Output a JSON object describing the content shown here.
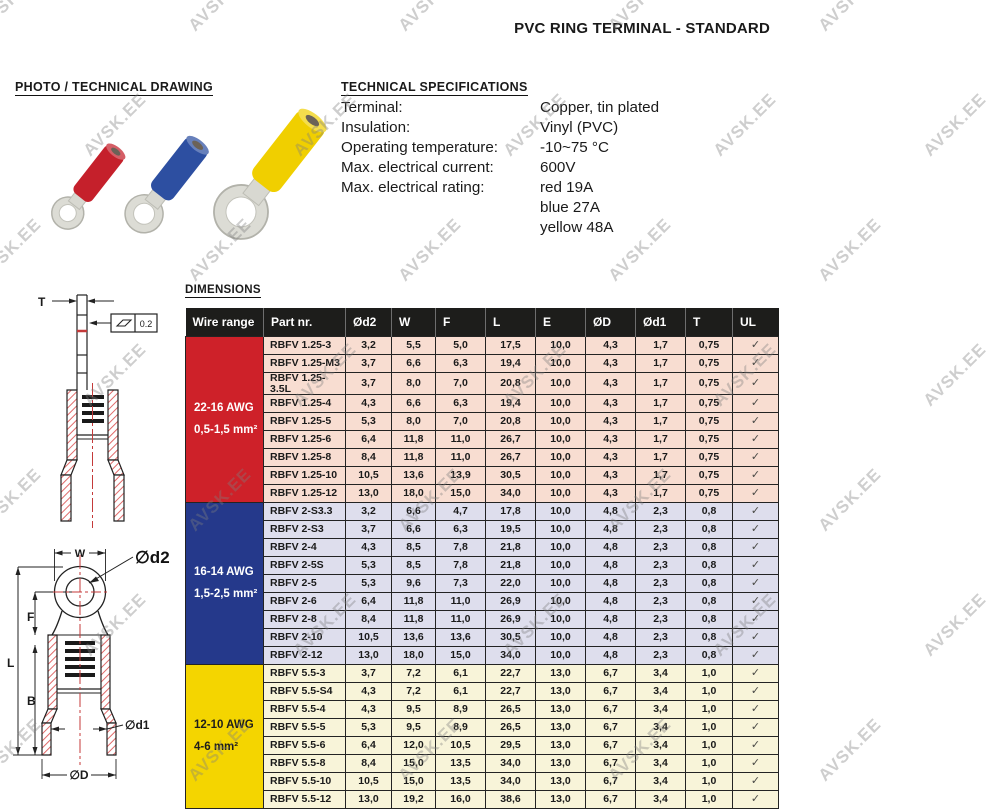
{
  "watermark": {
    "text": "AVSK.EE"
  },
  "title": "PVC RING TERMINAL - STANDARD",
  "sections": {
    "photo_heading": "PHOTO / TECHNICAL DRAWING",
    "specs_heading": "TECHNICAL SPECIFICATIONS",
    "dimensions_heading": "DIMENSIONS"
  },
  "specs": {
    "rows": [
      {
        "label": "Terminal:",
        "value": "Copper, tin plated"
      },
      {
        "label": "Insulation:",
        "value": "Vinyl (PVC)"
      },
      {
        "label": "Operating temperature:",
        "value": "-10~75 °C"
      },
      {
        "label": "Max. electrical current:",
        "value": "600V"
      },
      {
        "label": "Max. electrical rating:",
        "value": "red 19A"
      },
      {
        "label": "",
        "value": "blue 27A"
      },
      {
        "label": "",
        "value": "yellow 48A"
      }
    ]
  },
  "photo": {
    "terminals": [
      {
        "name": "red-terminal",
        "color": "#c5202b"
      },
      {
        "name": "blue-terminal",
        "color": "#2d4fa1"
      },
      {
        "name": "yellow-terminal",
        "color": "#f0cf00"
      }
    ]
  },
  "drawing_side": {
    "labels": {
      "t": "T",
      "tolerance": "0.2"
    }
  },
  "drawing_front": {
    "labels": {
      "w": "W",
      "d2": "∅d2",
      "f": "F",
      "l": "L",
      "b": "B",
      "d1": "∅d1",
      "d_outer": "∅D"
    }
  },
  "table": {
    "header_bg": "#1d1d1b",
    "check_symbol": "✓",
    "columns": [
      "Wire range",
      "Part nr.",
      "Ød2",
      "W",
      "F",
      "L",
      "E",
      "ØD",
      "Ød1",
      "T",
      "UL"
    ],
    "groups": [
      {
        "wire_range": "22-16 AWG",
        "wire_mm": "0,5-1,5 mm²",
        "label_bg": "#ce2129",
        "label_color": "#ffffff",
        "row_bg": "#f8ddd1",
        "rows": [
          {
            "part": "RBFV 1.25-3",
            "values": [
              "3,2",
              "5,5",
              "5,0",
              "17,5",
              "10,0",
              "4,3",
              "1,7",
              "0,75"
            ],
            "ul": true
          },
          {
            "part": "RBFV 1.25-M3",
            "values": [
              "3,7",
              "6,6",
              "6,3",
              "19,4",
              "10,0",
              "4,3",
              "1,7",
              "0,75"
            ],
            "ul": true
          },
          {
            "part": "RBFV 1.25-3.5L",
            "values": [
              "3,7",
              "8,0",
              "7,0",
              "20,8",
              "10,0",
              "4,3",
              "1,7",
              "0,75"
            ],
            "ul": true
          },
          {
            "part": "RBFV 1.25-4",
            "values": [
              "4,3",
              "6,6",
              "6,3",
              "19,4",
              "10,0",
              "4,3",
              "1,7",
              "0,75"
            ],
            "ul": true
          },
          {
            "part": "RBFV 1.25-5",
            "values": [
              "5,3",
              "8,0",
              "7,0",
              "20,8",
              "10,0",
              "4,3",
              "1,7",
              "0,75"
            ],
            "ul": true
          },
          {
            "part": "RBFV 1.25-6",
            "values": [
              "6,4",
              "11,8",
              "11,0",
              "26,7",
              "10,0",
              "4,3",
              "1,7",
              "0,75"
            ],
            "ul": true
          },
          {
            "part": "RBFV 1.25-8",
            "values": [
              "8,4",
              "11,8",
              "11,0",
              "26,7",
              "10,0",
              "4,3",
              "1,7",
              "0,75"
            ],
            "ul": true
          },
          {
            "part": "RBFV 1.25-10",
            "values": [
              "10,5",
              "13,6",
              "13,9",
              "30,5",
              "10,0",
              "4,3",
              "1,7",
              "0,75"
            ],
            "ul": true
          },
          {
            "part": "RBFV 1.25-12",
            "values": [
              "13,0",
              "18,0",
              "15,0",
              "34,0",
              "10,0",
              "4,3",
              "1,7",
              "0,75"
            ],
            "ul": true
          }
        ]
      },
      {
        "wire_range": "16-14 AWG",
        "wire_mm": "1,5-2,5 mm²",
        "label_bg": "#25398b",
        "label_color": "#ffffff",
        "row_bg": "#dedeed",
        "rows": [
          {
            "part": "RBFV 2-S3.3",
            "values": [
              "3,2",
              "6,6",
              "4,7",
              "17,8",
              "10,0",
              "4,8",
              "2,3",
              "0,8"
            ],
            "ul": true
          },
          {
            "part": "RBFV 2-S3",
            "values": [
              "3,7",
              "6,6",
              "6,3",
              "19,5",
              "10,0",
              "4,8",
              "2,3",
              "0,8"
            ],
            "ul": true
          },
          {
            "part": "RBFV 2-4",
            "values": [
              "4,3",
              "8,5",
              "7,8",
              "21,8",
              "10,0",
              "4,8",
              "2,3",
              "0,8"
            ],
            "ul": true
          },
          {
            "part": "RBFV 2-5S",
            "values": [
              "5,3",
              "8,5",
              "7,8",
              "21,8",
              "10,0",
              "4,8",
              "2,3",
              "0,8"
            ],
            "ul": true
          },
          {
            "part": "RBFV 2-5",
            "values": [
              "5,3",
              "9,6",
              "7,3",
              "22,0",
              "10,0",
              "4,8",
              "2,3",
              "0,8"
            ],
            "ul": true
          },
          {
            "part": "RBFV 2-6",
            "values": [
              "6,4",
              "11,8",
              "11,0",
              "26,9",
              "10,0",
              "4,8",
              "2,3",
              "0,8"
            ],
            "ul": true
          },
          {
            "part": "RBFV 2-8",
            "values": [
              "8,4",
              "11,8",
              "11,0",
              "26,9",
              "10,0",
              "4,8",
              "2,3",
              "0,8"
            ],
            "ul": true
          },
          {
            "part": "RBFV 2-10",
            "values": [
              "10,5",
              "13,6",
              "13,6",
              "30,5",
              "10,0",
              "4,8",
              "2,3",
              "0,8"
            ],
            "ul": true
          },
          {
            "part": "RBFV 2-12",
            "values": [
              "13,0",
              "18,0",
              "15,0",
              "34,0",
              "10,0",
              "4,8",
              "2,3",
              "0,8"
            ],
            "ul": true
          }
        ]
      },
      {
        "wire_range": "12-10 AWG",
        "wire_mm": "4-6 mm²",
        "label_bg": "#f4d500",
        "label_color": "#1d1d1b",
        "row_bg": "#f8f4d9",
        "rows": [
          {
            "part": "RBFV 5.5-3",
            "values": [
              "3,7",
              "7,2",
              "6,1",
              "22,7",
              "13,0",
              "6,7",
              "3,4",
              "1,0"
            ],
            "ul": true
          },
          {
            "part": "RBFV 5.5-S4",
            "values": [
              "4,3",
              "7,2",
              "6,1",
              "22,7",
              "13,0",
              "6,7",
              "3,4",
              "1,0"
            ],
            "ul": true
          },
          {
            "part": "RBFV 5.5-4",
            "values": [
              "4,3",
              "9,5",
              "8,9",
              "26,5",
              "13,0",
              "6,7",
              "3,4",
              "1,0"
            ],
            "ul": true
          },
          {
            "part": "RBFV 5.5-5",
            "values": [
              "5,3",
              "9,5",
              "8,9",
              "26,5",
              "13,0",
              "6,7",
              "3,4",
              "1,0"
            ],
            "ul": true
          },
          {
            "part": "RBFV 5.5-6",
            "values": [
              "6,4",
              "12,0",
              "10,5",
              "29,5",
              "13,0",
              "6,7",
              "3,4",
              "1,0"
            ],
            "ul": true
          },
          {
            "part": "RBFV 5.5-8",
            "values": [
              "8,4",
              "15,0",
              "13,5",
              "34,0",
              "13,0",
              "6,7",
              "3,4",
              "1,0"
            ],
            "ul": true
          },
          {
            "part": "RBFV 5.5-10",
            "values": [
              "10,5",
              "15,0",
              "13,5",
              "34,0",
              "13,0",
              "6,7",
              "3,4",
              "1,0"
            ],
            "ul": true
          },
          {
            "part": "RBFV 5.5-12",
            "values": [
              "13,0",
              "19,2",
              "16,0",
              "38,6",
              "13,0",
              "6,7",
              "3,4",
              "1,0"
            ],
            "ul": true
          }
        ]
      }
    ]
  }
}
